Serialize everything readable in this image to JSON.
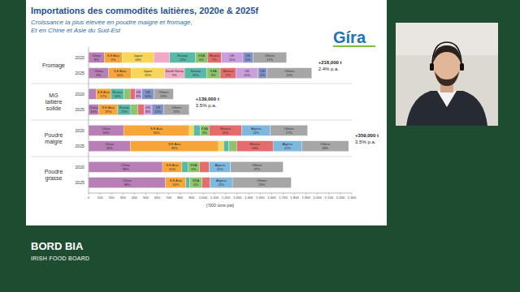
{
  "chart_data": {
    "type": "bar",
    "orientation": "horizontal",
    "stacked": true,
    "grid": false,
    "title": "Importations des commodités laitières, 2020e & 2025f",
    "subtitle": [
      "Croissance la plus élevée en poudre maigre et fromage,",
      "Et en Chine et Asie du Sud-Est"
    ],
    "x_label": "('000 tons pw)",
    "categories": [
      "2020",
      "2025",
      "2020",
      "2025",
      "2020",
      "2025",
      "2020",
      "2025"
    ],
    "groups": [
      {
        "label": [
          "Fromage"
        ],
        "annotation": [
          "+218,000 t",
          "2.4% p.a."
        ]
      },
      {
        "label": [
          "MG",
          "laitière",
          "solide"
        ],
        "annotation": [
          "+139,000 t",
          "3.5% p.a."
        ]
      },
      {
        "label": [
          "Poudre",
          "maigre"
        ],
        "annotation": [
          "+359,000 t",
          "3.5% p.a."
        ]
      },
      {
        "label": [
          "Poudre",
          "grasse"
        ],
        "annotation": []
      }
    ],
    "xlim": [
      0,
      2300
    ],
    "xticks": [
      0,
      100,
      200,
      300,
      400,
      500,
      600,
      700,
      800,
      900,
      {
        "value": 1000,
        "label": "1,000"
      },
      {
        "value": 1100,
        "label": "1,100"
      },
      {
        "value": 1200,
        "label": "1,200"
      },
      {
        "value": 1300,
        "label": "1,300"
      },
      {
        "value": 1400,
        "label": "1,400"
      },
      {
        "value": 1500,
        "label": "1,500"
      },
      {
        "value": 1600,
        "label": "1,600"
      },
      {
        "value": 1700,
        "label": "1,700"
      },
      {
        "value": 1800,
        "label": "1,800"
      },
      {
        "value": 1900,
        "label": "1,900"
      },
      {
        "value": 2000,
        "label": "2,000"
      },
      {
        "value": 2100,
        "label": "2,100"
      },
      {
        "value": 2200,
        "label": "2,200"
      },
      {
        "value": 2300,
        "label": "2,300"
      }
    ],
    "series": [
      {
        "name": "China",
        "color": "#b77fb5",
        "values": [
          138,
          176,
          67,
          88,
          306,
          364,
          646,
          673
        ],
        "share_labels": [
          "8%",
          "9%",
          null,
          "10%",
          "16%",
          "16%",
          "38%",
          "38%"
        ]
      },
      {
        "name": "S.E Asia",
        "color": "#f6a53a",
        "values": [
          156,
          195,
          126,
          167,
          574,
          772,
          170,
          177
        ],
        "share_labels": [
          "9%",
          "10%",
          "17%",
          "19%",
          "30%",
          "34%",
          "10%",
          "10%"
        ]
      },
      {
        "name": "Japan",
        "color": "#f7d65a",
        "values": [
          277,
          292,
          null,
          null,
          38,
          45,
          null,
          null
        ],
        "share_labels": [
          "16%",
          "15%",
          null,
          null,
          null,
          null,
          null,
          null
        ]
      },
      {
        "name": "South Korea",
        "color": "#f2a9c4",
        "values": [
          138,
          175,
          null,
          null,
          null,
          null,
          null,
          null
        ],
        "share_labels": [
          null,
          "9%",
          null,
          null,
          null,
          null,
          null,
          null
        ]
      },
      {
        "name": "Russia",
        "color": "#58b9a8",
        "values": [
          225,
          195,
          118,
          114,
          57,
          45,
          51,
          35
        ],
        "share_labels": [
          "13%",
          "10%",
          "16%",
          "13%",
          null,
          null,
          null,
          null
        ]
      },
      {
        "name": "KSA",
        "color": "#8cc56b",
        "values": [
          104,
          117,
          52,
          62,
          77,
          68,
          102,
          106
        ],
        "share_labels": [
          "6%",
          "6%",
          null,
          null,
          "4%",
          null,
          "6%",
          "6%"
        ]
      },
      {
        "name": "Mexico",
        "color": "#e46c6c",
        "values": [
          121,
          137,
          44,
          53,
          287,
          318,
          85,
          71
        ],
        "share_labels": [
          "7%",
          "7%",
          null,
          null,
          "15%",
          "14%",
          null,
          null
        ]
      },
      {
        "name": "Algeria",
        "color": "#7fb8de",
        "values": [
          null,
          null,
          null,
          null,
          249,
          250,
          187,
          195
        ],
        "share_labels": [
          null,
          null,
          null,
          null,
          "13%",
          "11%",
          "11%",
          "11%"
        ]
      },
      {
        "name": "UK",
        "color": "#c9a0dc",
        "values": [
          190,
          195,
          59,
          70,
          null,
          null,
          null,
          null
        ],
        "share_labels": [
          "11%",
          "10%",
          "8%",
          "8%",
          null,
          null,
          null,
          null
        ]
      },
      {
        "name": "US",
        "color": "#8193c9",
        "values": [
          87,
          78,
          104,
          105,
          null,
          null,
          null,
          null
        ],
        "share_labels": [
          "5%",
          "4%",
          "14%",
          "12%",
          null,
          null,
          null,
          null
        ]
      },
      {
        "name": "Others",
        "color": "#a6a6a6",
        "values": [
          294,
          390,
          170,
          220,
          325,
          410,
          459,
          513
        ],
        "share_labels": [
          "17%",
          "20%",
          "23%",
          "25%",
          "17%",
          "18%",
          "27%",
          "29%"
        ]
      }
    ]
  },
  "slide": {
    "logo": "Gíra"
  },
  "footer": {
    "brand": "BORD BIA",
    "tagline": "IRISH FOOD BOARD"
  }
}
